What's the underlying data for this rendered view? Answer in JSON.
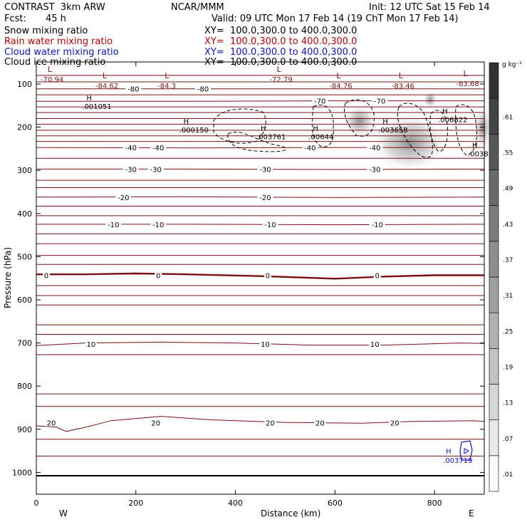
{
  "header": {
    "title": "CONTRAST  3km ARW",
    "org": "NCAR/MMM",
    "init": "Init: 12 UTC Sat 15 Feb 14",
    "fcst_label": "Fcst:",
    "fcst_value": "45 h",
    "valid": "Valid: 09 UTC Mon 17 Feb 14 (19 ChT Mon 17 Feb 14)",
    "fields": [
      {
        "name": "Snow mixing ratio",
        "xy": "XY=  100.0,300.0 to 400.0,300.0",
        "color": "#000000"
      },
      {
        "name": "Rain water mixing ratio",
        "xy": "XY=  100.0,300.0 to 400.0,300.0",
        "color": "#c00000"
      },
      {
        "name": "Cloud water mixing ratio",
        "xy": "XY=  100.0,300.0 to 400.0,300.0",
        "color": "#1010d0"
      },
      {
        "name": "Cloud ice mixing ratio",
        "xy": "XY=  100.0,300.0 to 400.0,300.0",
        "color": "#000000"
      }
    ]
  },
  "chart_data": {
    "type": "contour",
    "xlabel": "Distance (km)",
    "ylabel": "Pressure (hPa)",
    "xlim": [
      0,
      900
    ],
    "ylim": [
      1050,
      50
    ],
    "x_ticks": [
      0,
      200,
      400,
      600,
      800
    ],
    "y_ticks": [
      100,
      200,
      300,
      400,
      500,
      600,
      700,
      800,
      900,
      1000
    ],
    "direction_labels": {
      "left": "W",
      "right": "E"
    },
    "colorbar": {
      "unit": "g kg⁻¹",
      "ticks": [
        ".01",
        ".07",
        ".13",
        ".19",
        ".25",
        ".31",
        ".37",
        ".43",
        ".49",
        ".55",
        ".61"
      ]
    },
    "temperature_contours": [
      {
        "value": 20,
        "label_pressure": 885,
        "label_x": [
          30,
          240,
          470,
          570,
          720
        ],
        "profile": [
          [
            0,
            892
          ],
          [
            40,
            895
          ],
          [
            60,
            905
          ],
          [
            100,
            895
          ],
          [
            150,
            880
          ],
          [
            250,
            870
          ],
          [
            350,
            878
          ],
          [
            500,
            884
          ],
          [
            650,
            886
          ],
          [
            750,
            882
          ],
          [
            880,
            880
          ],
          [
            900,
            882
          ]
        ]
      },
      {
        "value": 10,
        "label_pressure": 702,
        "label_x": [
          110,
          460,
          680
        ],
        "profile": [
          [
            0,
            706
          ],
          [
            100,
            700
          ],
          [
            250,
            698
          ],
          [
            400,
            700
          ],
          [
            550,
            705
          ],
          [
            700,
            705
          ],
          [
            850,
            700
          ],
          [
            900,
            701
          ]
        ]
      },
      {
        "value": 0,
        "label_pressure": 543,
        "label_x": [
          20,
          245,
          465,
          685
        ],
        "profile": [
          [
            0,
            541
          ],
          [
            100,
            541
          ],
          [
            200,
            539
          ],
          [
            300,
            541
          ],
          [
            450,
            545
          ],
          [
            600,
            551
          ],
          [
            700,
            546
          ],
          [
            800,
            543
          ],
          [
            900,
            543
          ]
        ]
      },
      {
        "value": -10,
        "label_pressure": 425,
        "label_x": [
          155,
          245,
          470,
          685
        ],
        "profile": [
          [
            0,
            425
          ],
          [
            300,
            425
          ],
          [
            600,
            426
          ],
          [
            900,
            425
          ]
        ]
      },
      {
        "value": -20,
        "label_pressure": 362,
        "label_x": [
          175,
          460
        ],
        "profile": [
          [
            0,
            362
          ],
          [
            300,
            361
          ],
          [
            600,
            363
          ],
          [
            900,
            362
          ]
        ]
      },
      {
        "value": -30,
        "label_pressure": 297,
        "label_x": [
          190,
          240,
          460,
          680
        ],
        "profile": [
          [
            0,
            297
          ],
          [
            300,
            297
          ],
          [
            600,
            298
          ],
          [
            900,
            297
          ]
        ]
      },
      {
        "value": -40,
        "label_pressure": 247,
        "label_x": [
          190,
          245,
          550,
          680
        ],
        "profile": [
          [
            0,
            247
          ],
          [
            300,
            248
          ],
          [
            600,
            247
          ],
          [
            900,
            247
          ]
        ]
      },
      {
        "value": -70,
        "label_pressure": 139,
        "label_x": [
          570,
          690
        ],
        "profile": [
          [
            0,
            140
          ],
          [
            300,
            140
          ],
          [
            600,
            139
          ],
          [
            900,
            139
          ]
        ]
      },
      {
        "value": -80,
        "label_pressure": 111,
        "label_x": [
          195,
          335
        ],
        "profile": [
          [
            0,
            111
          ],
          [
            300,
            111
          ],
          [
            600,
            111
          ],
          [
            900,
            111
          ]
        ]
      }
    ],
    "extra_isotherm_pressures": [
      80,
      95,
      125,
      153,
      166,
      180,
      193,
      207,
      220,
      233,
      272,
      323,
      340,
      383,
      405,
      447,
      470,
      497,
      518,
      567,
      590,
      612,
      658,
      680,
      727,
      818,
      847,
      923,
      962
    ],
    "temperature_minima": [
      {
        "label": "L",
        "value": "-70.94",
        "x": 20,
        "pressure": 82
      },
      {
        "label": "L",
        "value": "-84.62",
        "x": 130,
        "pressure": 97
      },
      {
        "label": "L",
        "value": "-84.3",
        "x": 255,
        "pressure": 97
      },
      {
        "label": "L",
        "value": "-72.79",
        "x": 480,
        "pressure": 82
      },
      {
        "label": "L",
        "value": "-84.76",
        "x": 600,
        "pressure": 97
      },
      {
        "label": "L",
        "value": "-83.46",
        "x": 725,
        "pressure": 97
      },
      {
        "label": "L",
        "value": "-83.68",
        "x": 855,
        "pressure": 92
      }
    ],
    "snow_maxima": [
      {
        "label": "H",
        "value": ".001051",
        "x": 95,
        "pressure": 148
      },
      {
        "label": "H",
        "value": ".000150",
        "x": 290,
        "pressure": 202
      },
      {
        "label": "H",
        "value": ".003761",
        "x": 445,
        "pressure": 218
      },
      {
        "label": "H",
        "value": ".00644",
        "x": 550,
        "pressure": 218
      },
      {
        "label": "H",
        "value": ".003658",
        "x": 690,
        "pressure": 202
      },
      {
        "label": "H",
        "value": ".006822",
        "x": 810,
        "pressure": 178
      },
      {
        "label": "H",
        "value": ".0038",
        "x": 870,
        "pressure": 258
      }
    ],
    "cloud_water_maxima": [
      {
        "label": "H",
        "value": ".003719",
        "x": 820,
        "pressure": 978
      }
    ]
  }
}
